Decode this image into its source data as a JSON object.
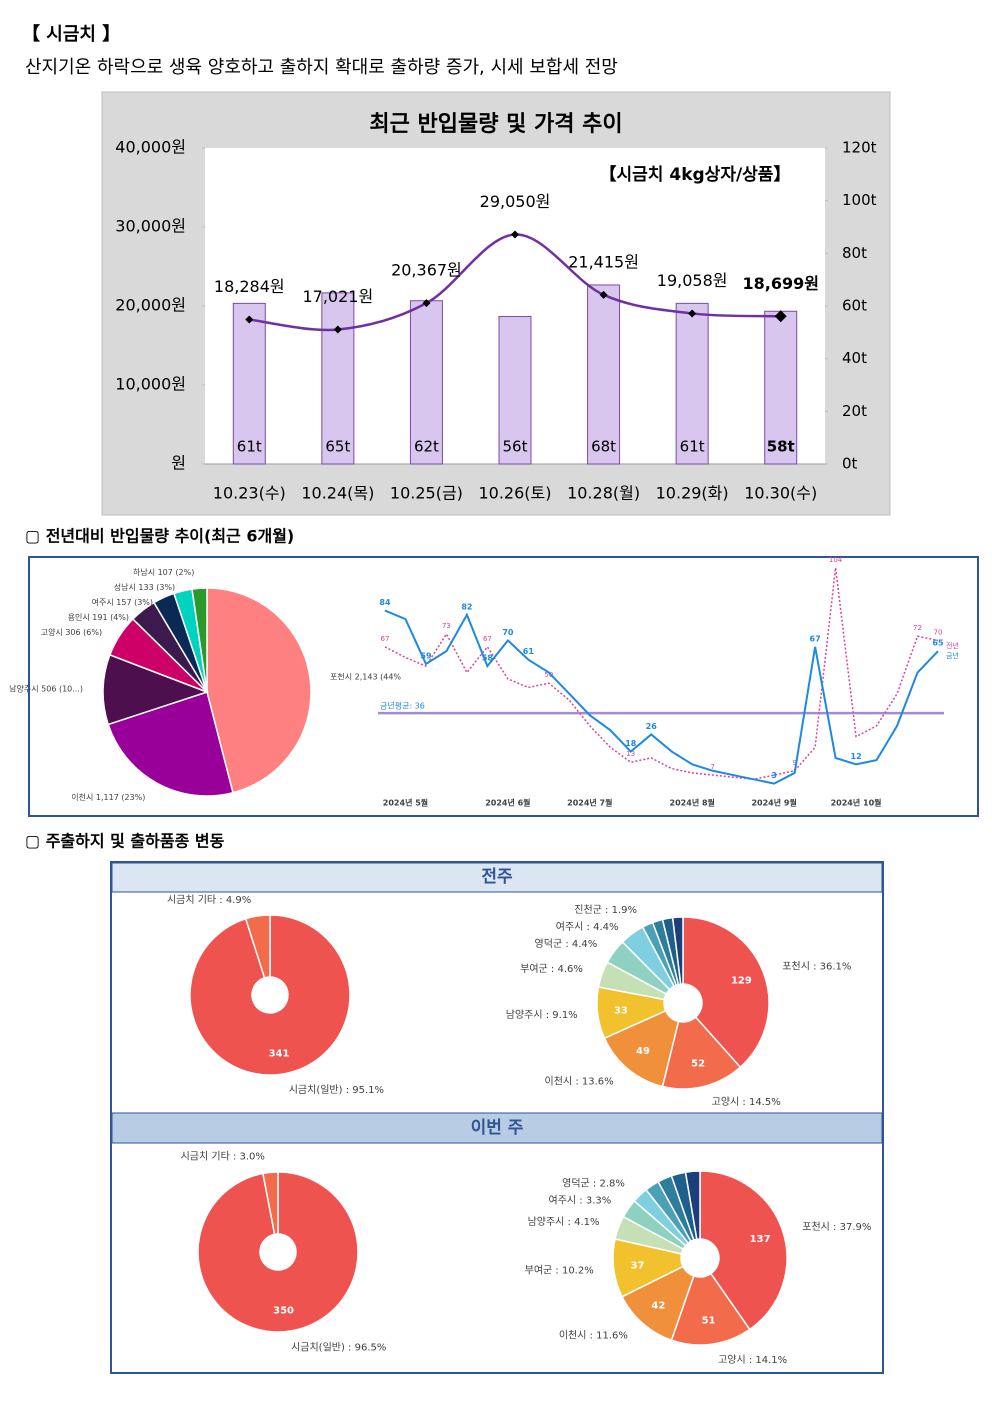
{
  "header": {
    "title": "【 시금치 】",
    "subtitle": "산지기온 하락으로 생육 양호하고 출하지 확대로 출하량 증가, 시세 보합세 전망"
  },
  "sections": [
    "▢ 전년대비 반입물량 추이(최근 6개월)",
    "▢ 주출하지 및 출하품종 변동"
  ],
  "panels": [
    "전주",
    "이번 주"
  ],
  "chart_data": [
    {
      "type": "combo",
      "title": "최근 반입물량 및 가격 추이",
      "annotation": "【시금치 4kg상자/상품】",
      "categories": [
        "10.23(수)",
        "10.24(목)",
        "10.25(금)",
        "10.26(토)",
        "10.28(월)",
        "10.29(화)",
        "10.30(수)"
      ],
      "series": [
        {
          "type": "bar",
          "axis": "y2",
          "color": "#d9c6ee",
          "values": [
            61,
            65,
            62,
            56,
            68,
            61,
            58
          ],
          "value_labels": [
            "61t",
            "65t",
            "62t",
            "56t",
            "68t",
            "61t",
            "58t"
          ]
        },
        {
          "type": "line",
          "color": "#7030a0",
          "values": [
            18284,
            17021,
            20367,
            29050,
            21415,
            19058,
            18699
          ],
          "value_labels": [
            "18,284원",
            "17,021원",
            "20,367원",
            "29,050원",
            "21,415원",
            "19,058원",
            "18,699원"
          ]
        }
      ],
      "ylim": [
        0,
        40000
      ],
      "yticks": [
        {
          "value": 0,
          "label": "원"
        },
        {
          "value": 10000,
          "label": "10,000원"
        },
        {
          "value": 20000,
          "label": "20,000원"
        },
        {
          "value": 30000,
          "label": "30,000원"
        },
        {
          "value": 40000,
          "label": "40,000원"
        }
      ],
      "y2lim": [
        0,
        120
      ],
      "y2ticks": [
        {
          "value": 0,
          "label": "0t"
        },
        {
          "value": 20,
          "label": "20t"
        },
        {
          "value": 40,
          "label": "40t"
        },
        {
          "value": 60,
          "label": "60t"
        },
        {
          "value": 80,
          "label": "80t"
        },
        {
          "value": 100,
          "label": "100t"
        },
        {
          "value": 120,
          "label": "120t"
        }
      ]
    },
    {
      "type": "pie",
      "values": [
        2143,
        1117,
        506,
        306,
        191,
        157,
        133,
        107
      ],
      "value_labels": [
        "포천시 2,143 (44%",
        "이천시 1,117 (23%)",
        "남양주시 506 (10...)",
        "고양시 306 (6%)",
        "용인시 191 (4%)",
        "여주시 157 (3%)",
        "성남시 133 (3%)",
        "하남시 107 (2%)"
      ],
      "colors": [
        "#ff8080",
        "#990099",
        "#4d0f4d",
        "#cc0066",
        "#3d1a4d",
        "#0a2a55",
        "#00d4c0",
        "#2a9a2a"
      ]
    },
    {
      "type": "line",
      "categories": [
        null,
        "2024년 5월",
        null,
        null,
        null,
        null,
        "2024년 6월",
        null,
        null,
        null,
        "2024년 7월",
        null,
        null,
        null,
        null,
        "2024년 8월",
        null,
        null,
        null,
        "2024년 9월",
        null,
        null,
        null,
        "2024년 10월",
        null,
        null,
        null,
        null
      ],
      "series": [
        {
          "name": "전년",
          "color": "#e0409a",
          "dashed": true,
          "values": [
            67,
            62,
            58,
            73,
            55,
            67,
            52,
            48,
            50,
            42,
            30,
            20,
            13,
            15,
            10,
            8,
            7,
            6,
            5,
            7,
            9,
            20,
            104,
            25,
            30,
            45,
            72,
            70
          ],
          "value_labels": [
            "67",
            null,
            null,
            "73",
            null,
            "67",
            null,
            null,
            "50",
            null,
            null,
            null,
            "13",
            null,
            null,
            null,
            "7",
            null,
            null,
            null,
            "9",
            null,
            "104",
            null,
            null,
            null,
            "72",
            "70"
          ]
        },
        {
          "name": "금년",
          "color": "#1e88e5",
          "dashed": false,
          "values": [
            84,
            80,
            59,
            65,
            82,
            58,
            70,
            61,
            55,
            45,
            35,
            28,
            18,
            26,
            18,
            12,
            9,
            7,
            5,
            3,
            8,
            67,
            15,
            12,
            14,
            30,
            55,
            65
          ],
          "value_labels": [
            "84",
            null,
            "59",
            null,
            "82",
            "58",
            "70",
            "61",
            null,
            null,
            null,
            null,
            "18",
            "26",
            null,
            null,
            null,
            null,
            null,
            "3",
            null,
            "67",
            null,
            "12",
            null,
            null,
            null,
            "65"
          ]
        }
      ],
      "ylim": [
        0,
        110
      ],
      "reference": {
        "value": 36,
        "label": "금년평균: 36",
        "color": "#a78bd0"
      }
    },
    {
      "type": "donut",
      "values": [
        95.1,
        4.9
      ],
      "value_labels": [
        "시금치(일반) : 95.1%",
        "시금치 기타 : 4.9%"
      ],
      "counts": [
        341,
        null
      ],
      "colors": [
        "#ef5350",
        "#f26b4a"
      ]
    },
    {
      "type": "donut",
      "values": [
        36.1,
        14.5,
        13.6,
        9.1,
        4.6,
        4.4,
        4.4,
        1.9,
        1.8,
        1.8,
        1.8
      ],
      "value_labels": [
        "포천시 : 36.1%",
        "고양시 : 14.5%",
        "이천시 : 13.6%",
        "남양주시 : 9.1%",
        "부여군 : 4.6%",
        "영덕군 : 4.4%",
        "여주시 : 4.4%",
        "진천군 : 1.9%",
        null,
        null,
        null
      ],
      "counts": [
        129,
        52,
        49,
        33,
        null,
        null,
        null,
        null,
        null,
        null,
        null
      ],
      "colors": [
        "#ef5350",
        "#f26b4a",
        "#f0903a",
        "#f2c12e",
        "#c5e0b4",
        "#8fd1c1",
        "#7ecfe0",
        "#4aa0b5",
        "#2e7d9a",
        "#1f5f8b",
        "#1a3f7a"
      ]
    },
    {
      "type": "donut",
      "values": [
        96.5,
        3.0
      ],
      "value_labels": [
        "시금치(일반) : 96.5%",
        "시금치 기타 : 3.0%"
      ],
      "counts": [
        350,
        null
      ],
      "colors": [
        "#ef5350",
        "#f26b4a"
      ]
    },
    {
      "type": "donut",
      "values": [
        37.9,
        14.1,
        11.6,
        10.2,
        4.1,
        3.3,
        2.8,
        2.5,
        2.5,
        2.5,
        2.5
      ],
      "value_labels": [
        "포천시 : 37.9%",
        "고양시 : 14.1%",
        "이천시 : 11.6%",
        "부여군 : 10.2%",
        "남양주시 : 4.1%",
        "여주시 : 3.3%",
        "영덕군 : 2.8%",
        null,
        null,
        null,
        null
      ],
      "counts": [
        137,
        51,
        42,
        37,
        null,
        null,
        null,
        null,
        null,
        null,
        null
      ],
      "colors": [
        "#ef5350",
        "#f26b4a",
        "#f0903a",
        "#f2c12e",
        "#c5e0b4",
        "#8fd1c1",
        "#7ecfe0",
        "#4aa0b5",
        "#2e7d9a",
        "#1f5f8b",
        "#1a3f7a"
      ]
    }
  ]
}
